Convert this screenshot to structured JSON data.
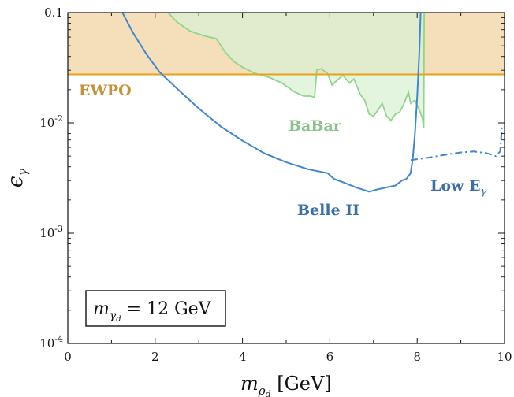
{
  "chart_data": {
    "type": "line",
    "xlabel": "m_{ρ_d} [GeV]",
    "ylabel": "ε_γ",
    "x_scale": "linear",
    "y_scale": "log",
    "xlim": [
      0,
      10
    ],
    "ylim": [
      0.0001,
      0.1
    ],
    "x_ticks": [
      {
        "value": 0,
        "label": "0"
      },
      {
        "value": 2,
        "label": "2"
      },
      {
        "value": 4,
        "label": "4"
      },
      {
        "value": 6,
        "label": "6"
      },
      {
        "value": 8,
        "label": "8"
      },
      {
        "value": 10,
        "label": "10"
      }
    ],
    "y_ticks": [
      {
        "value": 0.1,
        "label": "0.1"
      },
      {
        "value": 0.01,
        "label": "10-2"
      },
      {
        "value": 0.001,
        "label": "10-3"
      },
      {
        "value": 0.0001,
        "label": "10-4"
      }
    ],
    "annotation_box": "m_{γ_d} = 12 GeV",
    "series": [
      {
        "name": "EWPO",
        "style": "shaded-region-above",
        "color": "#e9a11b",
        "fill": "#f5deba",
        "points": [
          [
            0,
            0.0275
          ],
          [
            10,
            0.0275
          ]
        ]
      },
      {
        "name": "BaBar",
        "style": "shaded-region",
        "color": "#8fd68a",
        "fill": "#d9f0d4",
        "points": [
          [
            2.3,
            0.1
          ],
          [
            2.5,
            0.082
          ],
          [
            2.8,
            0.068
          ],
          [
            3.1,
            0.062
          ],
          [
            3.4,
            0.058
          ],
          [
            3.6,
            0.044
          ],
          [
            3.8,
            0.036
          ],
          [
            4.0,
            0.032
          ],
          [
            4.3,
            0.028
          ],
          [
            4.6,
            0.026
          ],
          [
            4.9,
            0.023
          ],
          [
            5.2,
            0.019
          ],
          [
            5.4,
            0.0175
          ],
          [
            5.55,
            0.0175
          ],
          [
            5.65,
            0.017
          ],
          [
            5.7,
            0.03
          ],
          [
            5.8,
            0.031
          ],
          [
            5.95,
            0.028
          ],
          [
            6.05,
            0.022
          ],
          [
            6.15,
            0.024
          ],
          [
            6.3,
            0.027
          ],
          [
            6.45,
            0.023
          ],
          [
            6.55,
            0.025
          ],
          [
            6.7,
            0.018
          ],
          [
            6.8,
            0.016
          ],
          [
            6.9,
            0.012
          ],
          [
            7.0,
            0.0115
          ],
          [
            7.1,
            0.013
          ],
          [
            7.2,
            0.015
          ],
          [
            7.3,
            0.0115
          ],
          [
            7.4,
            0.0105
          ],
          [
            7.5,
            0.012
          ],
          [
            7.6,
            0.0125
          ],
          [
            7.7,
            0.015
          ],
          [
            7.8,
            0.019
          ],
          [
            7.85,
            0.015
          ],
          [
            7.95,
            0.016
          ],
          [
            8.05,
            0.013
          ],
          [
            8.12,
            0.011
          ],
          [
            8.15,
            0.009
          ],
          [
            8.16,
            0.1
          ]
        ]
      },
      {
        "name": "Belle II",
        "style": "solid-line",
        "color": "#3f88cf",
        "points": [
          [
            1.25,
            0.1
          ],
          [
            1.5,
            0.065
          ],
          [
            1.8,
            0.042
          ],
          [
            2.1,
            0.029
          ],
          [
            2.5,
            0.0205
          ],
          [
            3.0,
            0.0135
          ],
          [
            3.5,
            0.0093
          ],
          [
            4.0,
            0.0069
          ],
          [
            4.5,
            0.0053
          ],
          [
            5.0,
            0.0044
          ],
          [
            5.5,
            0.0038
          ],
          [
            5.95,
            0.0035
          ],
          [
            6.1,
            0.0031
          ],
          [
            6.3,
            0.0029
          ],
          [
            6.6,
            0.0026
          ],
          [
            6.9,
            0.00238
          ],
          [
            7.1,
            0.0025
          ],
          [
            7.3,
            0.0026
          ],
          [
            7.5,
            0.0027
          ],
          [
            7.65,
            0.003
          ],
          [
            7.75,
            0.0031
          ],
          [
            7.85,
            0.0035
          ],
          [
            7.9,
            0.0048
          ],
          [
            7.95,
            0.008
          ],
          [
            8.0,
            0.017
          ],
          [
            8.05,
            0.045
          ],
          [
            8.08,
            0.1
          ]
        ]
      },
      {
        "name": "Low E_γ",
        "style": "dash-dot-line",
        "color": "#3f88cf",
        "points": [
          [
            7.85,
            0.0046
          ],
          [
            8.2,
            0.0048
          ],
          [
            8.6,
            0.0051
          ],
          [
            9.0,
            0.0054
          ],
          [
            9.3,
            0.0055
          ],
          [
            9.6,
            0.0053
          ],
          [
            9.8,
            0.005
          ],
          [
            9.9,
            0.0055
          ],
          [
            9.92,
            0.007
          ],
          [
            9.94,
            0.0092
          ]
        ]
      }
    ]
  }
}
